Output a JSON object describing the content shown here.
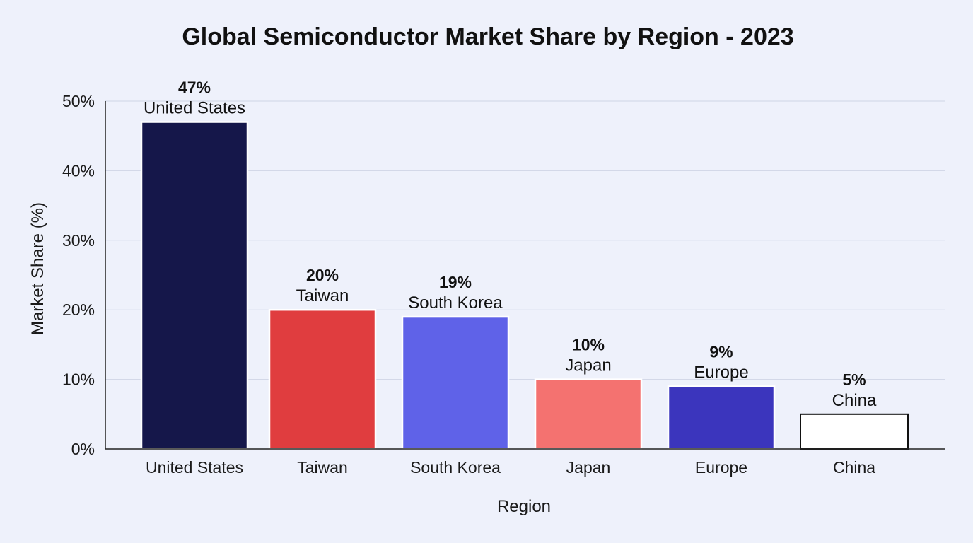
{
  "chart_data": {
    "type": "bar",
    "title": "Global Semiconductor Market Share by Region - 2023",
    "xlabel": "Region",
    "ylabel": "Market Share (%)",
    "ylim": [
      0,
      50
    ],
    "yticks": [
      "0%",
      "10%",
      "20%",
      "30%",
      "40%",
      "50%"
    ],
    "ytick_values": [
      0,
      10,
      20,
      30,
      40,
      50
    ],
    "grid": true,
    "categories": [
      "United States",
      "Taiwan",
      "South Korea",
      "Japan",
      "Europe",
      "China"
    ],
    "values": [
      47,
      20,
      19,
      10,
      9,
      5
    ],
    "value_labels": [
      "47%",
      "20%",
      "19%",
      "10%",
      "9%",
      "5%"
    ],
    "colors": [
      "#15174a",
      "#e03d3f",
      "#5f62e8",
      "#f47270",
      "#3b35bd",
      "#ffffff"
    ]
  }
}
